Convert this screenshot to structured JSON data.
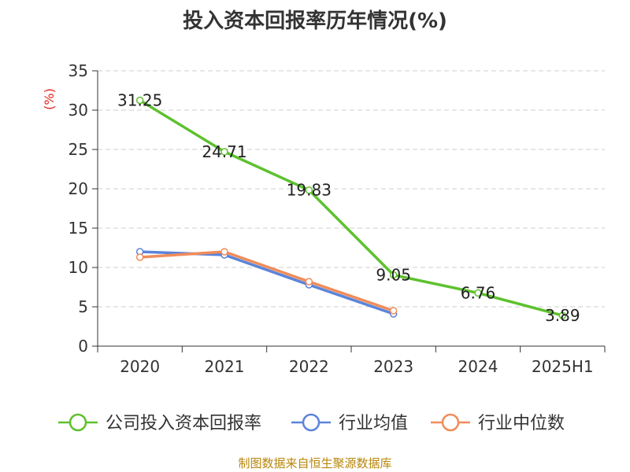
{
  "chart_data": {
    "type": "line",
    "title": "投入资本回报率历年情况(%)",
    "ylabel": "(%)",
    "xlabel": "",
    "categories": [
      "2020",
      "2021",
      "2022",
      "2023",
      "2024",
      "2025H1"
    ],
    "ylim": [
      0,
      35
    ],
    "yticks": [
      0,
      5,
      10,
      15,
      20,
      25,
      30,
      35
    ],
    "grid": true,
    "legend_position": "bottom",
    "series": [
      {
        "name": "公司投入资本回报率",
        "color": "#5ec12e",
        "values": [
          31.25,
          24.71,
          19.83,
          9.05,
          6.76,
          3.89
        ],
        "labels": [
          "31.25",
          "24.71",
          "19.83",
          "9.05",
          "6.76",
          "3.89"
        ]
      },
      {
        "name": "行业均值",
        "color": "#5b84d9",
        "values": [
          12.0,
          11.6,
          7.8,
          4.1,
          null,
          null
        ]
      },
      {
        "name": "行业中位数",
        "color": "#f08c5a",
        "values": [
          11.3,
          12.0,
          8.2,
          4.5,
          null,
          null
        ]
      }
    ]
  },
  "source": "制图数据来自恒生聚源数据库"
}
